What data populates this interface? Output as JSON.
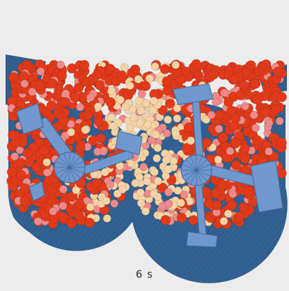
{
  "caption": {
    "time": "6 s"
  },
  "colors": {
    "background": "#ececec",
    "vessel": "#2f5e8f",
    "vessel_dark": "#234a73",
    "paddle": "#6f98cf",
    "particle_red": "#e03a1a",
    "particle_pink": "#ee8a8a",
    "particle_cream": "#f6d3a4"
  }
}
